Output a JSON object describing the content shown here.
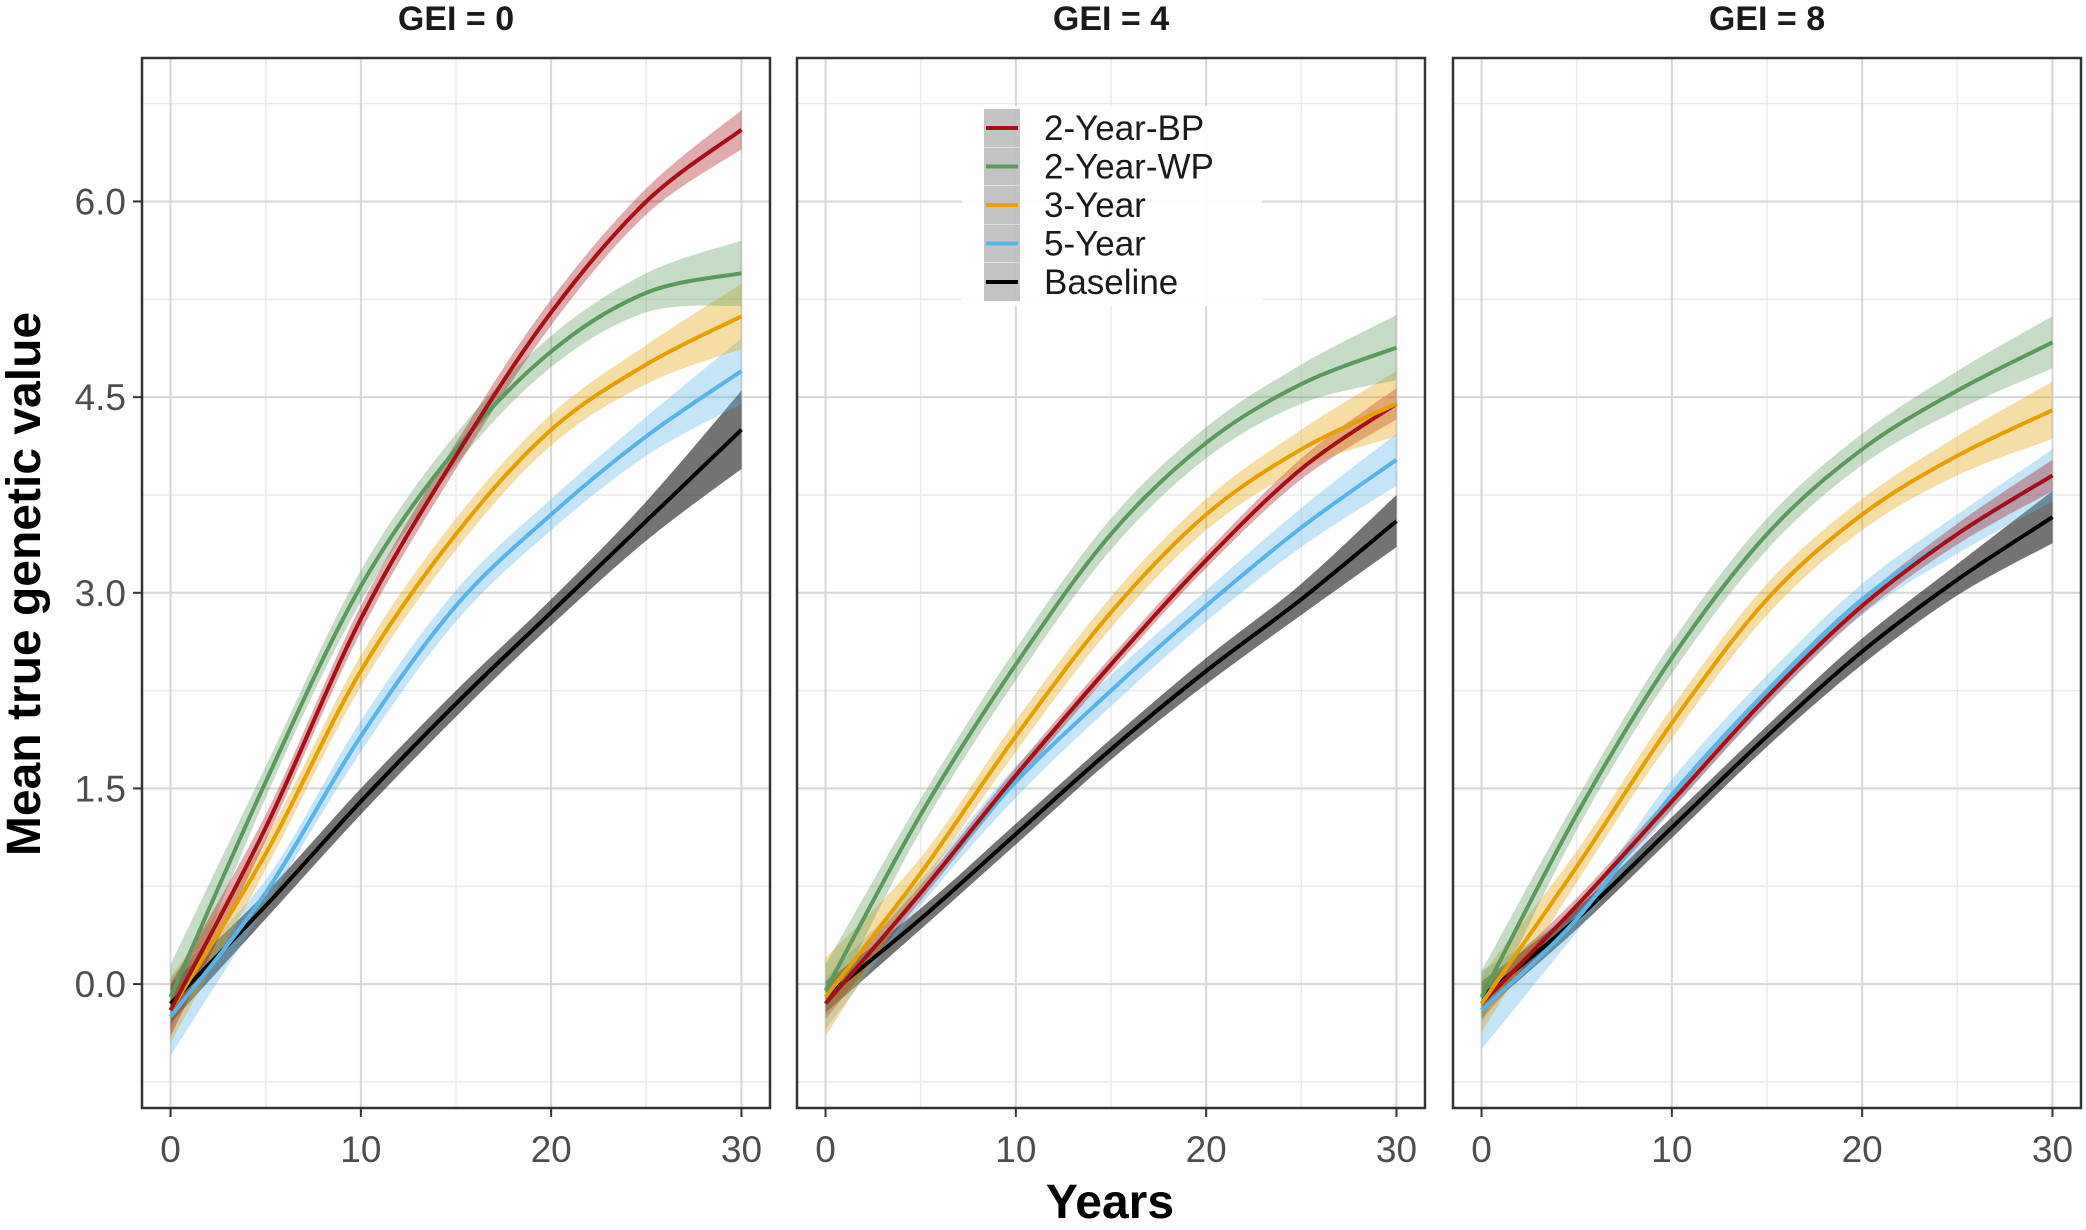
{
  "chart_data": {
    "type": "line",
    "xlabel": "Years",
    "ylabel": "Mean true genetic value",
    "x_ticks": [
      0,
      10,
      20,
      30
    ],
    "x_tick_labels": [
      "0",
      "10",
      "20",
      "30"
    ],
    "y_ticks": [
      0.0,
      1.5,
      3.0,
      4.5,
      6.0
    ],
    "y_tick_labels": [
      "0.0",
      "1.5",
      "3.0",
      "4.5",
      "6.0"
    ],
    "xlim": [
      -1.5,
      31.5
    ],
    "ylim": [
      -0.95,
      7.1
    ],
    "grid": true,
    "legend_position": "top-center (inside middle panel)",
    "legend": [
      {
        "key": "bp",
        "label": "2-Year-BP",
        "color": "#a50f15"
      },
      {
        "key": "wp",
        "label": "2-Year-WP",
        "color": "#5b9a5d"
      },
      {
        "key": "y3",
        "label": "3-Year",
        "color": "#e69f00"
      },
      {
        "key": "y5",
        "label": "5-Year",
        "color": "#56b4e9"
      },
      {
        "key": "base",
        "label": "Baseline",
        "color": "#000000"
      }
    ],
    "x": [
      0,
      5,
      10,
      15,
      20,
      25,
      30
    ],
    "panels": [
      {
        "title": "GEI = 0",
        "series": [
          {
            "key": "base",
            "name": "Baseline",
            "values": [
              -0.15,
              0.6,
              1.4,
              2.15,
              2.85,
              3.55,
              4.25
            ],
            "band": [
              0.15,
              0.1,
              0.1,
              0.1,
              0.1,
              0.15,
              0.3
            ]
          },
          {
            "key": "y5",
            "name": "5-Year",
            "values": [
              -0.25,
              0.7,
              1.9,
              2.9,
              3.6,
              4.2,
              4.7
            ],
            "band": [
              0.3,
              0.1,
              0.12,
              0.12,
              0.12,
              0.15,
              0.25
            ]
          },
          {
            "key": "y3",
            "name": "3-Year",
            "values": [
              -0.2,
              1.0,
              2.4,
              3.45,
              4.25,
              4.75,
              5.12
            ],
            "band": [
              0.25,
              0.12,
              0.12,
              0.12,
              0.12,
              0.15,
              0.25
            ]
          },
          {
            "key": "wp",
            "name": "2-Year-WP",
            "values": [
              -0.1,
              1.55,
              3.05,
              4.1,
              4.85,
              5.3,
              5.45
            ],
            "band": [
              0.25,
              0.12,
              0.12,
              0.12,
              0.12,
              0.15,
              0.25
            ]
          },
          {
            "key": "bp",
            "name": "2-Year-BP",
            "values": [
              -0.2,
              1.2,
              2.8,
              4.05,
              5.15,
              6.0,
              6.55
            ],
            "band": [
              0.2,
              0.1,
              0.1,
              0.1,
              0.1,
              0.1,
              0.15
            ]
          }
        ]
      },
      {
        "title": "GEI = 4",
        "series": [
          {
            "key": "base",
            "name": "Baseline",
            "values": [
              -0.1,
              0.5,
              1.15,
              1.8,
              2.4,
              2.95,
              3.55
            ],
            "band": [
              0.12,
              0.08,
              0.08,
              0.08,
              0.1,
              0.12,
              0.2
            ]
          },
          {
            "key": "y5",
            "name": "5-Year",
            "values": [
              -0.15,
              0.7,
              1.55,
              2.25,
              2.9,
              3.5,
              4.02
            ],
            "band": [
              0.2,
              0.1,
              0.12,
              0.12,
              0.12,
              0.15,
              0.2
            ]
          },
          {
            "key": "bp",
            "name": "2-Year-BP",
            "values": [
              -0.15,
              0.7,
              1.6,
              2.45,
              3.25,
              3.95,
              4.45
            ],
            "band": [
              0.12,
              0.06,
              0.06,
              0.06,
              0.06,
              0.08,
              0.12
            ]
          },
          {
            "key": "y3",
            "name": "3-Year",
            "values": [
              -0.1,
              0.85,
              1.9,
              2.85,
              3.6,
              4.1,
              4.45
            ],
            "band": [
              0.3,
              0.12,
              0.12,
              0.12,
              0.12,
              0.15,
              0.25
            ]
          },
          {
            "key": "wp",
            "name": "2-Year-WP",
            "values": [
              -0.05,
              1.3,
              2.45,
              3.45,
              4.15,
              4.6,
              4.88
            ],
            "band": [
              0.2,
              0.12,
              0.12,
              0.12,
              0.12,
              0.15,
              0.25
            ]
          }
        ]
      },
      {
        "title": "GEI = 8",
        "series": [
          {
            "key": "base",
            "name": "Baseline",
            "values": [
              -0.1,
              0.5,
              1.2,
              1.9,
              2.55,
              3.1,
              3.58
            ],
            "band": [
              0.12,
              0.08,
              0.08,
              0.08,
              0.1,
              0.12,
              0.2
            ]
          },
          {
            "key": "y5",
            "name": "5-Year",
            "values": [
              -0.2,
              0.5,
              1.45,
              2.25,
              2.95,
              3.45,
              3.9
            ],
            "band": [
              0.3,
              0.1,
              0.12,
              0.12,
              0.12,
              0.15,
              0.2
            ]
          },
          {
            "key": "bp",
            "name": "2-Year-BP",
            "values": [
              -0.15,
              0.6,
              1.4,
              2.2,
              2.9,
              3.45,
              3.9
            ],
            "band": [
              0.12,
              0.06,
              0.06,
              0.06,
              0.06,
              0.08,
              0.12
            ]
          },
          {
            "key": "y3",
            "name": "3-Year",
            "values": [
              -0.15,
              0.9,
              2.0,
              2.95,
              3.6,
              4.05,
              4.4
            ],
            "band": [
              0.22,
              0.12,
              0.12,
              0.12,
              0.12,
              0.15,
              0.22
            ]
          },
          {
            "key": "wp",
            "name": "2-Year-WP",
            "values": [
              -0.1,
              1.3,
              2.5,
              3.45,
              4.1,
              4.55,
              4.92
            ],
            "band": [
              0.2,
              0.12,
              0.12,
              0.12,
              0.12,
              0.15,
              0.2
            ]
          }
        ]
      }
    ]
  }
}
